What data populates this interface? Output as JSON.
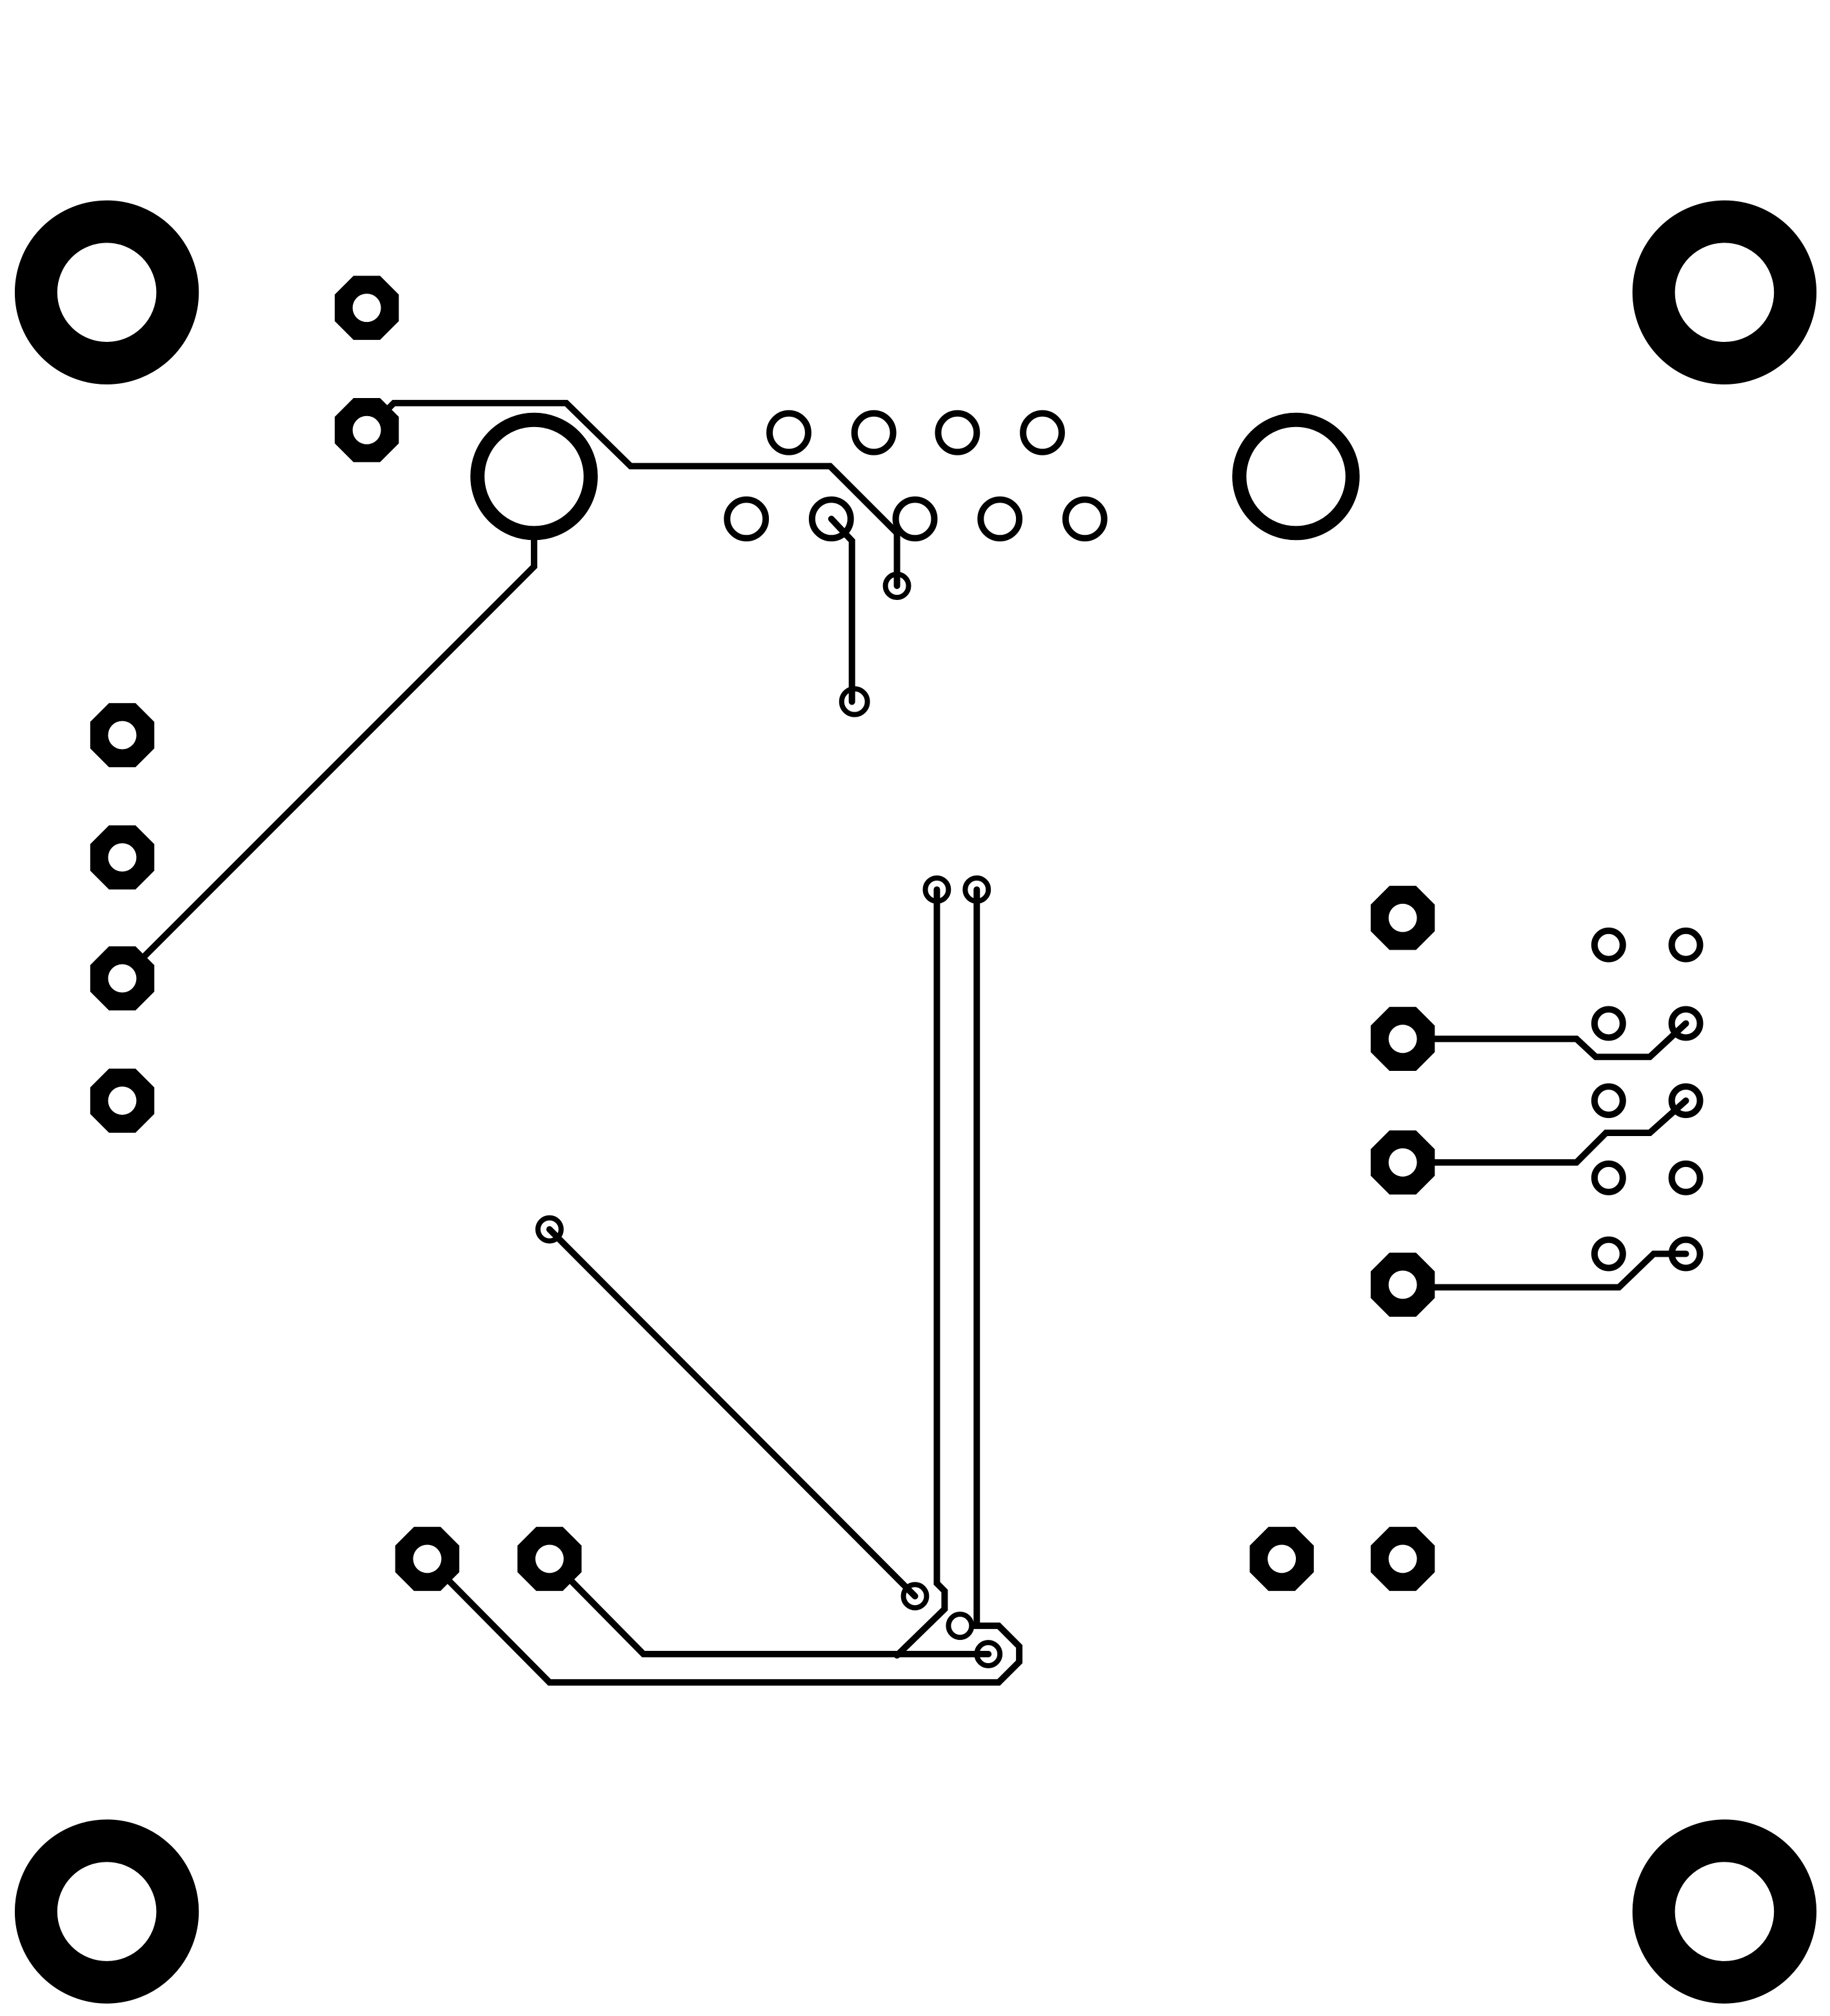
{
  "board": {
    "background_color": "#ffffff",
    "copper_color": "#000000"
  }
}
